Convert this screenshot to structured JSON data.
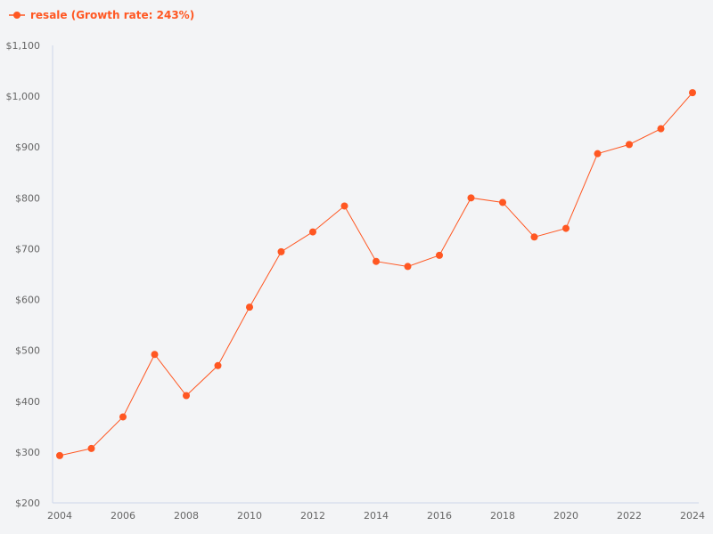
{
  "chart_data": {
    "type": "line",
    "legend": {
      "label": "resale (Growth rate: 243%)",
      "position": "top-left"
    },
    "color": "#ff5722",
    "x": [
      2004,
      2005,
      2006,
      2007,
      2008,
      2009,
      2010,
      2011,
      2012,
      2013,
      2014,
      2015,
      2016,
      2017,
      2018,
      2019,
      2020,
      2021,
      2022,
      2023,
      2024
    ],
    "series": [
      {
        "name": "resale",
        "values": [
          293,
          307,
          369,
          492,
          411,
          470,
          585,
          694,
          733,
          784,
          675,
          665,
          687,
          800,
          791,
          723,
          740,
          887,
          905,
          936,
          1007
        ]
      }
    ],
    "xticks": [
      "2004",
      "2006",
      "2008",
      "2010",
      "2012",
      "2014",
      "2016",
      "2018",
      "2020",
      "2022",
      "2024"
    ],
    "yticks": [
      "$200",
      "$300",
      "$400",
      "$500",
      "$600",
      "$700",
      "$800",
      "$900",
      "$1,000",
      "$1,100"
    ],
    "xlim": [
      2004,
      2024
    ],
    "ylim": [
      200,
      1100
    ],
    "grid": false
  }
}
